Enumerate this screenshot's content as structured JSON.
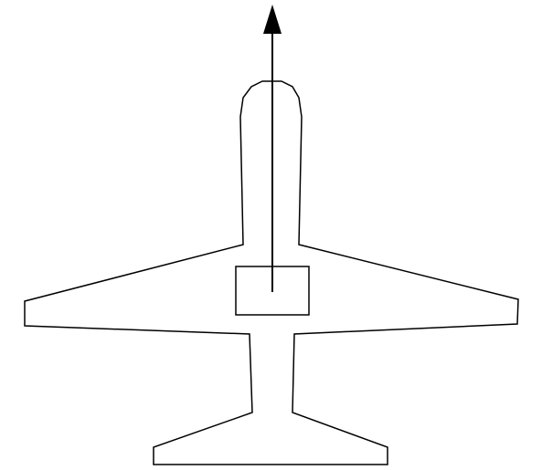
{
  "diagram": {
    "type": "aircraft-top-view",
    "elements": [
      "aircraft-outline",
      "center-box",
      "heading-arrow"
    ],
    "colors": {
      "background": "#ffffff",
      "stroke": "#000000",
      "arrow": "#000000"
    }
  }
}
